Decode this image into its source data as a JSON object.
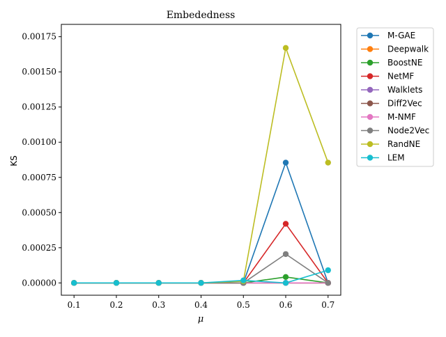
{
  "chart_data": {
    "type": "line",
    "title": "Embededness",
    "xlabel": "μ",
    "ylabel": "KS",
    "x": [
      0.1,
      0.2,
      0.3,
      0.4,
      0.5,
      0.6,
      0.7
    ],
    "x_tick_labels": [
      "0.1",
      "0.2",
      "0.3",
      "0.4",
      "0.5",
      "0.6",
      "0.7"
    ],
    "xlim": [
      0.07,
      0.73
    ],
    "ylim": [
      -8.75e-05,
      0.0018375
    ],
    "y_ticks": [
      0,
      0.00025,
      0.0005,
      0.00075,
      0.001,
      0.00125,
      0.0015,
      0.00175
    ],
    "y_tick_labels": [
      "0.00000",
      "0.00025",
      "0.00050",
      "0.00075",
      "0.00100",
      "0.00125",
      "0.00150",
      "0.00175"
    ],
    "grid": false,
    "legend_position": "outside-right",
    "series": [
      {
        "name": "M-GAE",
        "color": "#1f77b4",
        "values": [
          0,
          0,
          0,
          0,
          0,
          0.000855,
          0
        ]
      },
      {
        "name": "Deepwalk",
        "color": "#ff7f0e",
        "values": [
          0,
          0,
          0,
          0,
          0,
          0,
          0
        ]
      },
      {
        "name": "BoostNE",
        "color": "#2ca02c",
        "values": [
          0,
          0,
          0,
          0,
          0,
          4.2e-05,
          0
        ]
      },
      {
        "name": "NetMF",
        "color": "#d62728",
        "values": [
          0,
          0,
          0,
          0,
          0,
          0.00042,
          0
        ]
      },
      {
        "name": "Walklets",
        "color": "#9467bd",
        "values": [
          0,
          0,
          0,
          0,
          0,
          0,
          0
        ]
      },
      {
        "name": "Diff2Vec",
        "color": "#8c564b",
        "values": [
          0,
          0,
          0,
          0,
          0,
          0,
          0
        ]
      },
      {
        "name": "M-NMF",
        "color": "#e377c2",
        "values": [
          0,
          0,
          0,
          0,
          0,
          0,
          0
        ]
      },
      {
        "name": "Node2Vec",
        "color": "#7f7f7f",
        "values": [
          0,
          0,
          0,
          0,
          0,
          0.000205,
          0
        ]
      },
      {
        "name": "RandNE",
        "color": "#bcbd22",
        "values": [
          0,
          0,
          0,
          0,
          1.2e-05,
          0.00167,
          0.000855
        ]
      },
      {
        "name": "LEM",
        "color": "#17becf",
        "values": [
          0,
          0,
          0,
          0,
          1.8e-05,
          0,
          9e-05
        ]
      }
    ]
  }
}
